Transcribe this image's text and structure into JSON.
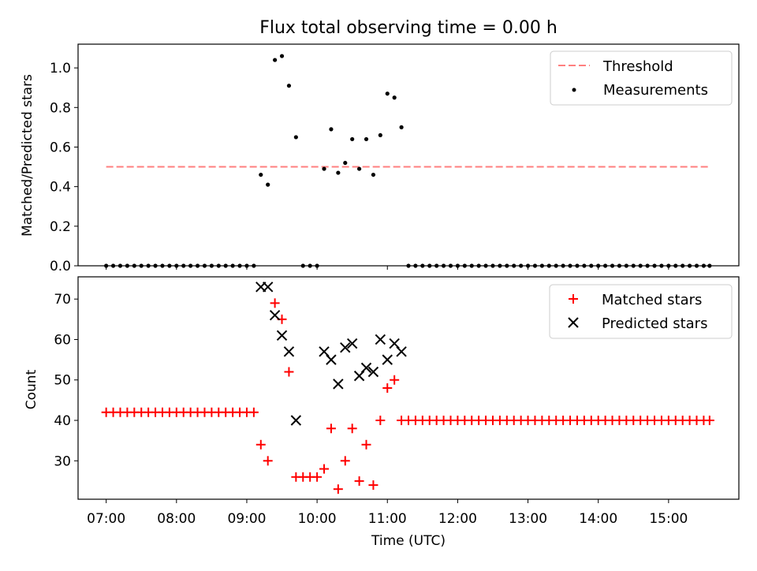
{
  "chart_data": [
    {
      "type": "scatter",
      "title": "Flux total observing time = 0.00 h",
      "xlabel": "",
      "ylabel": "Matched/Predicted stars",
      "xlim": [
        "06:36",
        "16:00"
      ],
      "ylim": [
        0,
        1.12
      ],
      "yticks": [
        0.0,
        0.2,
        0.4,
        0.6,
        0.8,
        1.0
      ],
      "legend_position": "top-right",
      "threshold": {
        "name": "Threshold",
        "value": 0.5,
        "x_range": [
          "07:00",
          "15:35"
        ],
        "color": "#ff7f7f",
        "style": "dashed"
      },
      "series": [
        {
          "name": "Measurements",
          "color": "#000000",
          "marker": "dot",
          "points": [
            [
              "07:00",
              0
            ],
            [
              "07:06",
              0
            ],
            [
              "07:12",
              0
            ],
            [
              "07:18",
              0
            ],
            [
              "07:24",
              0
            ],
            [
              "07:30",
              0
            ],
            [
              "07:36",
              0
            ],
            [
              "07:42",
              0
            ],
            [
              "07:48",
              0
            ],
            [
              "07:54",
              0
            ],
            [
              "08:00",
              0
            ],
            [
              "08:06",
              0
            ],
            [
              "08:12",
              0
            ],
            [
              "08:18",
              0
            ],
            [
              "08:24",
              0
            ],
            [
              "08:30",
              0
            ],
            [
              "08:36",
              0
            ],
            [
              "08:42",
              0
            ],
            [
              "08:48",
              0
            ],
            [
              "08:54",
              0
            ],
            [
              "09:00",
              0
            ],
            [
              "09:06",
              0
            ],
            [
              "09:12",
              0.46
            ],
            [
              "09:18",
              0.41
            ],
            [
              "09:24",
              1.04
            ],
            [
              "09:30",
              1.06
            ],
            [
              "09:36",
              0.91
            ],
            [
              "09:42",
              0.65
            ],
            [
              "09:48",
              0
            ],
            [
              "09:54",
              0
            ],
            [
              "10:00",
              0
            ],
            [
              "10:06",
              0.49
            ],
            [
              "10:12",
              0.69
            ],
            [
              "10:18",
              0.47
            ],
            [
              "10:24",
              0.52
            ],
            [
              "10:30",
              0.64
            ],
            [
              "10:36",
              0.49
            ],
            [
              "10:42",
              0.64
            ],
            [
              "10:48",
              0.46
            ],
            [
              "10:54",
              0.66
            ],
            [
              "11:00",
              0.87
            ],
            [
              "11:06",
              0.85
            ],
            [
              "11:12",
              0.7
            ],
            [
              "11:18",
              0
            ],
            [
              "11:24",
              0
            ],
            [
              "11:30",
              0
            ],
            [
              "11:36",
              0
            ],
            [
              "11:42",
              0
            ],
            [
              "11:48",
              0
            ],
            [
              "11:54",
              0
            ],
            [
              "12:00",
              0
            ],
            [
              "12:06",
              0
            ],
            [
              "12:12",
              0
            ],
            [
              "12:18",
              0
            ],
            [
              "12:24",
              0
            ],
            [
              "12:30",
              0
            ],
            [
              "12:36",
              0
            ],
            [
              "12:42",
              0
            ],
            [
              "12:48",
              0
            ],
            [
              "12:54",
              0
            ],
            [
              "13:00",
              0
            ],
            [
              "13:06",
              0
            ],
            [
              "13:12",
              0
            ],
            [
              "13:18",
              0
            ],
            [
              "13:24",
              0
            ],
            [
              "13:30",
              0
            ],
            [
              "13:36",
              0
            ],
            [
              "13:42",
              0
            ],
            [
              "13:48",
              0
            ],
            [
              "13:54",
              0
            ],
            [
              "14:00",
              0
            ],
            [
              "14:06",
              0
            ],
            [
              "14:12",
              0
            ],
            [
              "14:18",
              0
            ],
            [
              "14:24",
              0
            ],
            [
              "14:30",
              0
            ],
            [
              "14:36",
              0
            ],
            [
              "14:42",
              0
            ],
            [
              "14:48",
              0
            ],
            [
              "14:54",
              0
            ],
            [
              "15:00",
              0
            ],
            [
              "15:06",
              0
            ],
            [
              "15:12",
              0
            ],
            [
              "15:18",
              0
            ],
            [
              "15:24",
              0
            ],
            [
              "15:30",
              0
            ],
            [
              "15:35",
              0
            ]
          ]
        }
      ]
    },
    {
      "type": "scatter",
      "title": "",
      "xlabel": "Time (UTC)",
      "ylabel": "Count",
      "xlim": [
        "06:36",
        "16:00"
      ],
      "ylim": [
        20.5,
        75.5
      ],
      "yticks": [
        30,
        40,
        50,
        60,
        70
      ],
      "xticks": [
        "07:00",
        "08:00",
        "09:00",
        "10:00",
        "11:00",
        "12:00",
        "13:00",
        "14:00",
        "15:00"
      ],
      "legend_position": "top-right",
      "series": [
        {
          "name": "Matched stars",
          "color": "#ff0000",
          "marker": "plus",
          "points": [
            [
              "07:00",
              42
            ],
            [
              "07:06",
              42
            ],
            [
              "07:12",
              42
            ],
            [
              "07:18",
              42
            ],
            [
              "07:24",
              42
            ],
            [
              "07:30",
              42
            ],
            [
              "07:36",
              42
            ],
            [
              "07:42",
              42
            ],
            [
              "07:48",
              42
            ],
            [
              "07:54",
              42
            ],
            [
              "08:00",
              42
            ],
            [
              "08:06",
              42
            ],
            [
              "08:12",
              42
            ],
            [
              "08:18",
              42
            ],
            [
              "08:24",
              42
            ],
            [
              "08:30",
              42
            ],
            [
              "08:36",
              42
            ],
            [
              "08:42",
              42
            ],
            [
              "08:48",
              42
            ],
            [
              "08:54",
              42
            ],
            [
              "09:00",
              42
            ],
            [
              "09:06",
              42
            ],
            [
              "09:12",
              34
            ],
            [
              "09:18",
              30
            ],
            [
              "09:24",
              69
            ],
            [
              "09:30",
              65
            ],
            [
              "09:36",
              52
            ],
            [
              "09:42",
              26
            ],
            [
              "09:48",
              26
            ],
            [
              "09:54",
              26
            ],
            [
              "10:00",
              26
            ],
            [
              "10:06",
              28
            ],
            [
              "10:12",
              38
            ],
            [
              "10:18",
              23
            ],
            [
              "10:24",
              30
            ],
            [
              "10:30",
              38
            ],
            [
              "10:36",
              25
            ],
            [
              "10:42",
              34
            ],
            [
              "10:48",
              24
            ],
            [
              "10:54",
              40
            ],
            [
              "11:00",
              48
            ],
            [
              "11:06",
              50
            ],
            [
              "11:12",
              40
            ],
            [
              "11:18",
              40
            ],
            [
              "11:24",
              40
            ],
            [
              "11:30",
              40
            ],
            [
              "11:36",
              40
            ],
            [
              "11:42",
              40
            ],
            [
              "11:48",
              40
            ],
            [
              "11:54",
              40
            ],
            [
              "12:00",
              40
            ],
            [
              "12:06",
              40
            ],
            [
              "12:12",
              40
            ],
            [
              "12:18",
              40
            ],
            [
              "12:24",
              40
            ],
            [
              "12:30",
              40
            ],
            [
              "12:36",
              40
            ],
            [
              "12:42",
              40
            ],
            [
              "12:48",
              40
            ],
            [
              "12:54",
              40
            ],
            [
              "13:00",
              40
            ],
            [
              "13:06",
              40
            ],
            [
              "13:12",
              40
            ],
            [
              "13:18",
              40
            ],
            [
              "13:24",
              40
            ],
            [
              "13:30",
              40
            ],
            [
              "13:36",
              40
            ],
            [
              "13:42",
              40
            ],
            [
              "13:48",
              40
            ],
            [
              "13:54",
              40
            ],
            [
              "14:00",
              40
            ],
            [
              "14:06",
              40
            ],
            [
              "14:12",
              40
            ],
            [
              "14:18",
              40
            ],
            [
              "14:24",
              40
            ],
            [
              "14:30",
              40
            ],
            [
              "14:36",
              40
            ],
            [
              "14:42",
              40
            ],
            [
              "14:48",
              40
            ],
            [
              "14:54",
              40
            ],
            [
              "15:00",
              40
            ],
            [
              "15:06",
              40
            ],
            [
              "15:12",
              40
            ],
            [
              "15:18",
              40
            ],
            [
              "15:24",
              40
            ],
            [
              "15:30",
              40
            ],
            [
              "15:35",
              40
            ]
          ]
        },
        {
          "name": "Predicted stars",
          "color": "#000000",
          "marker": "x",
          "points": [
            [
              "09:12",
              73
            ],
            [
              "09:18",
              73
            ],
            [
              "09:24",
              66
            ],
            [
              "09:30",
              61
            ],
            [
              "09:36",
              57
            ],
            [
              "09:42",
              40
            ],
            [
              "10:06",
              57
            ],
            [
              "10:12",
              55
            ],
            [
              "10:18",
              49
            ],
            [
              "10:24",
              58
            ],
            [
              "10:30",
              59
            ],
            [
              "10:36",
              51
            ],
            [
              "10:42",
              53
            ],
            [
              "10:48",
              52
            ],
            [
              "10:54",
              60
            ],
            [
              "11:00",
              55
            ],
            [
              "11:06",
              59
            ],
            [
              "11:12",
              57
            ]
          ]
        }
      ]
    }
  ]
}
